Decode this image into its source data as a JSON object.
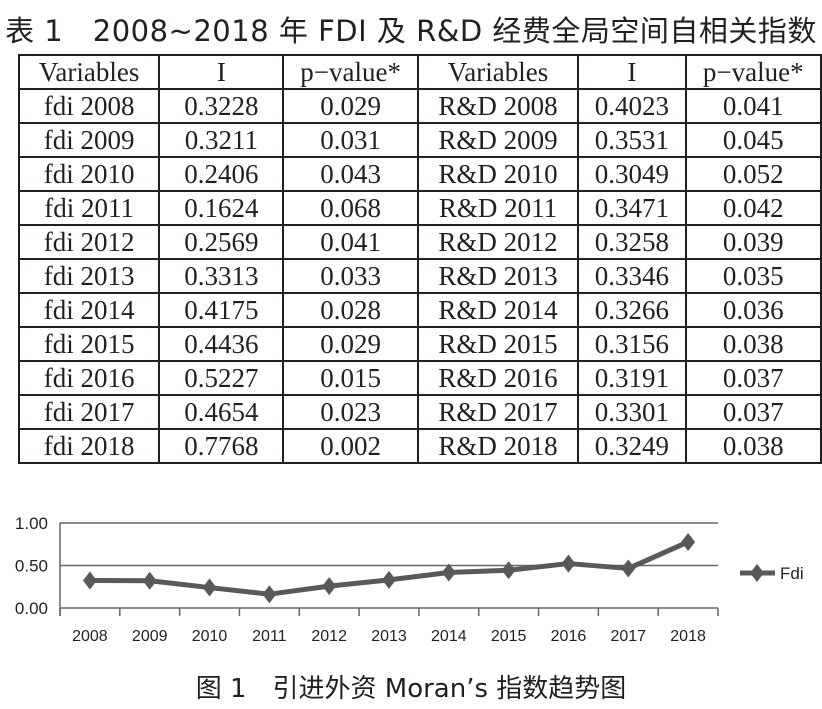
{
  "title": "表 1　2008~2018 年 FDI 及 R&D 经费全局空间自相关指数",
  "table": {
    "headers": [
      "Variables",
      "I",
      "p−value*",
      "Variables",
      "I",
      "p−value*"
    ],
    "rows": [
      [
        "fdi 2008",
        "0.3228",
        "0.029",
        "R&D 2008",
        "0.4023",
        "0.041"
      ],
      [
        "fdi 2009",
        "0.3211",
        "0.031",
        "R&D 2009",
        "0.3531",
        "0.045"
      ],
      [
        "fdi 2010",
        "0.2406",
        "0.043",
        "R&D 2010",
        "0.3049",
        "0.052"
      ],
      [
        "fdi 2011",
        "0.1624",
        "0.068",
        "R&D 2011",
        "0.3471",
        "0.042"
      ],
      [
        "fdi 2012",
        "0.2569",
        "0.041",
        "R&D 2012",
        "0.3258",
        "0.039"
      ],
      [
        "fdi 2013",
        "0.3313",
        "0.033",
        "R&D 2013",
        "0.3346",
        "0.035"
      ],
      [
        "fdi 2014",
        "0.4175",
        "0.028",
        "R&D 2014",
        "0.3266",
        "0.036"
      ],
      [
        "fdi 2015",
        "0.4436",
        "0.029",
        "R&D 2015",
        "0.3156",
        "0.038"
      ],
      [
        "fdi 2016",
        "0.5227",
        "0.015",
        "R&D 2016",
        "0.3191",
        "0.037"
      ],
      [
        "fdi 2017",
        "0.4654",
        "0.023",
        "R&D 2017",
        "0.3301",
        "0.037"
      ],
      [
        "fdi 2018",
        "0.7768",
        "0.002",
        "R&D 2018",
        "0.3249",
        "0.038"
      ]
    ]
  },
  "chart_data": {
    "type": "line",
    "categories": [
      "2008",
      "2009",
      "2010",
      "2011",
      "2012",
      "2013",
      "2014",
      "2015",
      "2016",
      "2017",
      "2018"
    ],
    "series": [
      {
        "name": "Fdi",
        "values": [
          0.3228,
          0.3211,
          0.2406,
          0.1624,
          0.2569,
          0.3313,
          0.4175,
          0.4436,
          0.5227,
          0.4654,
          0.7768
        ]
      }
    ],
    "yticks": [
      "0.00",
      "0.50",
      "1.00"
    ],
    "ylim": [
      0,
      1
    ],
    "grid": true,
    "legend": "right",
    "line_color": "#595959"
  },
  "caption": "图 1　引进外资 Moran’s 指数趋势图"
}
